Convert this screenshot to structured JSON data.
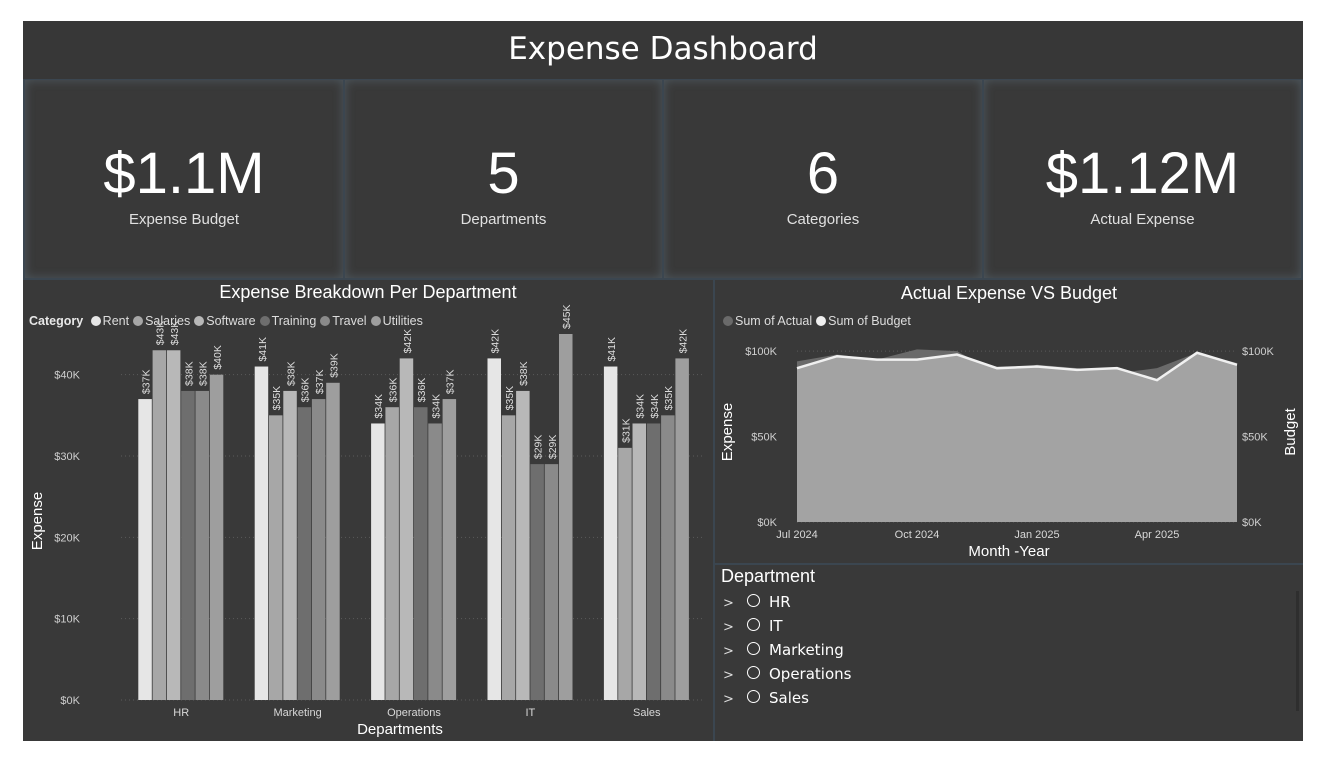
{
  "header": {
    "title": "Expense Dashboard"
  },
  "kpis": [
    {
      "value": "$1.1M",
      "label": "Expense Budget"
    },
    {
      "value": "5",
      "label": "Departments"
    },
    {
      "value": "6",
      "label": "Categories"
    },
    {
      "value": "$1.12M",
      "label": "Actual Expense"
    }
  ],
  "bar_chart": {
    "title": "Expense Breakdown Per Department",
    "legend_title": "Category",
    "xlabel": "Departments",
    "ylabel": "Expense"
  },
  "line_chart": {
    "title": "Actual Expense VS Budget",
    "xlabel": "Month -Year",
    "ylabel_left": "Expense",
    "ylabel_right": "Budget"
  },
  "slicer": {
    "title": "Department",
    "items": [
      "HR",
      "IT",
      "Marketing",
      "Operations",
      "Sales"
    ]
  },
  "colors": {
    "background": "#393939",
    "frame": "#3b4650",
    "series": [
      "#e6e6e6",
      "#a7a7a7",
      "#b8b8b8",
      "#6e6e6e",
      "#8a8a8a",
      "#9e9e9e"
    ],
    "actual": "#6a6a6a",
    "budget": "#f0f0f0",
    "area": "#a3a3a3"
  },
  "chart_data": [
    {
      "type": "bar",
      "title": "Expense Breakdown Per Department",
      "xlabel": "Departments",
      "ylabel": "Expense",
      "categories": [
        "HR",
        "Marketing",
        "Operations",
        "IT",
        "Sales"
      ],
      "legend_title": "Category",
      "legend_position": "top-left",
      "ylim": [
        0,
        45000
      ],
      "yticks": [
        "$0K",
        "$10K",
        "$20K",
        "$30K",
        "$40K"
      ],
      "grid": true,
      "series": [
        {
          "name": "Rent",
          "values": [
            37000,
            41000,
            34000,
            42000,
            41000
          ],
          "labels": [
            "$37K",
            "$41K",
            "$34K",
            "$42K",
            "$41K"
          ]
        },
        {
          "name": "Salaries",
          "values": [
            43000,
            35000,
            36000,
            35000,
            31000
          ],
          "labels": [
            "$43K",
            "$35K",
            "$36K",
            "$35K",
            "$31K"
          ]
        },
        {
          "name": "Software",
          "values": [
            43000,
            38000,
            42000,
            38000,
            34000
          ],
          "labels": [
            "$43K",
            "$38K",
            "$42K",
            "$38K",
            "$34K"
          ]
        },
        {
          "name": "Training",
          "values": [
            38000,
            36000,
            36000,
            29000,
            34000
          ],
          "labels": [
            "$38K",
            "$36K",
            "$36K",
            "$29K",
            "$34K"
          ]
        },
        {
          "name": "Travel",
          "values": [
            38000,
            37000,
            34000,
            29000,
            35000
          ],
          "labels": [
            "$38K",
            "$37K",
            "$34K",
            "$29K",
            "$35K"
          ]
        },
        {
          "name": "Utilities",
          "values": [
            40000,
            39000,
            37000,
            45000,
            42000
          ],
          "labels": [
            "$40K",
            "$39K",
            "$37K",
            "$45K",
            "$42K"
          ]
        }
      ]
    },
    {
      "type": "area",
      "title": "Actual Expense VS Budget",
      "xlabel": "Month -Year",
      "ylabel": "Expense",
      "y2label": "Budget",
      "legend_position": "top-left",
      "x": [
        "Jul 2024",
        "Aug 2024",
        "Sep 2024",
        "Oct 2024",
        "Nov 2024",
        "Dec 2024",
        "Jan 2025",
        "Feb 2025",
        "Mar 2025",
        "Apr 2025",
        "May 2025",
        "Jun 2025"
      ],
      "xticks": [
        "Jul 2024",
        "Oct 2024",
        "Jan 2025",
        "Apr 2025"
      ],
      "yticks": [
        "$0K",
        "$50K",
        "$100K"
      ],
      "ylim": [
        0,
        110000
      ],
      "grid": true,
      "series": [
        {
          "name": "Sum of Actual",
          "values": [
            94000,
            98000,
            95000,
            101000,
            100000,
            87000,
            92000,
            90000,
            87000,
            90000,
            99000,
            93000
          ]
        },
        {
          "name": "Sum of Budget",
          "values": [
            90000,
            97000,
            95000,
            95000,
            98000,
            90000,
            91000,
            89000,
            90000,
            83000,
            99000,
            92000
          ]
        }
      ]
    }
  ]
}
